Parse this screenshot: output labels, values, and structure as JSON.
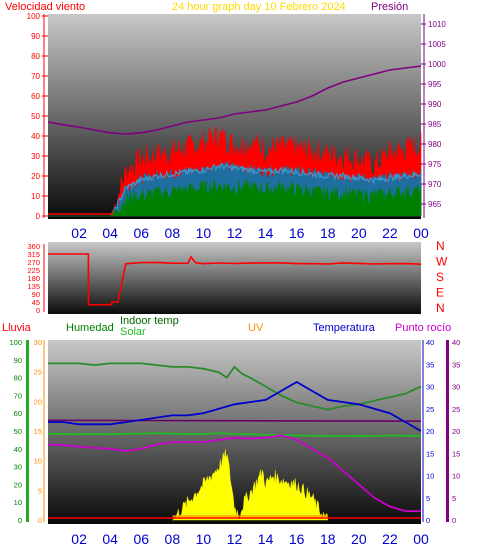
{
  "header": {
    "left_label": "Velocidad viento",
    "center_title": "24 hour graph day   10 Febrero 2024",
    "right_label": "Presión"
  },
  "panel3_labels": {
    "lluvia": "Lluvia",
    "humedad": "Humedad",
    "indoor_temp": "Indoor temp",
    "solar": "Solar",
    "uv": "UV",
    "temperatura": "Temperatura",
    "punto_rocio": "Punto rocío"
  },
  "colors": {
    "wind_gust": "#ff0000",
    "wind_avg": "#1f7fbf",
    "wind_green": "#008000",
    "pressure": "#800080",
    "direction": "#ff0000",
    "humidity": "#2a8a2a",
    "indoor_temp": "#22bb22",
    "solar": "#ffff00",
    "uv": "#ff8c00",
    "temperature": "#0000cc",
    "dewpoint": "#cc00cc",
    "rain": "#00aa00",
    "tick_x": "#0000cc",
    "title": "#ffd800"
  },
  "chart_data": [
    {
      "type": "line",
      "title": "24 hour graph day   10 Febrero 2024",
      "x_ticks": [
        "02",
        "04",
        "06",
        "08",
        "10",
        "12",
        "14",
        "16",
        "18",
        "20",
        "22",
        "00"
      ],
      "y_left_label": "Velocidad viento",
      "y_left_ticks": [
        0,
        10,
        20,
        30,
        40,
        50,
        60,
        70,
        80,
        90,
        100
      ],
      "ylim_left": [
        0,
        100
      ],
      "y_right_label": "Presión",
      "y_right_ticks": [
        965,
        970,
        975,
        980,
        985,
        990,
        995,
        1000,
        1005,
        1010
      ],
      "ylim_right": [
        962,
        1012
      ],
      "series": [
        {
          "name": "gust",
          "x": [
            0,
            1,
            2,
            3,
            4,
            4.3,
            5,
            6,
            7,
            8,
            9,
            10,
            11,
            12,
            13,
            14,
            15,
            16,
            17,
            18,
            19,
            20,
            21,
            22,
            23,
            24
          ],
          "values": [
            0,
            0,
            0,
            0,
            0,
            5,
            22,
            28,
            30,
            32,
            34,
            36,
            40,
            35,
            36,
            33,
            34,
            33,
            32,
            30,
            30,
            28,
            25,
            31,
            33,
            35
          ]
        },
        {
          "name": "avg",
          "x": [
            0,
            4,
            4.3,
            5,
            6,
            7,
            8,
            9,
            10,
            11,
            12,
            13,
            14,
            15,
            16,
            17,
            18,
            19,
            20,
            21,
            22,
            23,
            24
          ],
          "values": [
            0,
            0,
            3,
            14,
            18,
            20,
            21,
            22,
            23,
            25,
            24,
            23,
            22,
            23,
            22,
            21,
            20,
            20,
            19,
            18,
            19,
            20,
            21
          ]
        },
        {
          "name": "low",
          "x": [
            0,
            4,
            4.3,
            5,
            6,
            7,
            8,
            9,
            10,
            11,
            12,
            13,
            14,
            15,
            16,
            17,
            18,
            19,
            20,
            21,
            22,
            23,
            24
          ],
          "values": [
            0,
            0,
            2,
            8,
            10,
            11,
            12,
            13,
            14,
            15,
            14,
            14,
            13,
            14,
            13,
            12,
            11,
            11,
            10,
            10,
            11,
            12,
            12
          ]
        },
        {
          "name": "Presión",
          "x": [
            0,
            1,
            2,
            3,
            4,
            5,
            6,
            7,
            8,
            9,
            10,
            11,
            12,
            13,
            14,
            15,
            16,
            17,
            18,
            19,
            20,
            21,
            22,
            23,
            24
          ],
          "values": [
            985.5,
            984.8,
            984.2,
            983.5,
            982.8,
            982.5,
            982.8,
            983.5,
            984.5,
            985.5,
            986,
            986.5,
            987.5,
            988,
            988.5,
            989.5,
            990.5,
            992,
            994,
            995.5,
            996.5,
            997.5,
            998.5,
            999,
            999.5
          ]
        }
      ]
    },
    {
      "type": "line",
      "x_ticks": [
        "02",
        "04",
        "06",
        "08",
        "10",
        "12",
        "14",
        "16",
        "18",
        "20",
        "22",
        "00"
      ],
      "y_ticks": [
        0,
        45,
        90,
        135,
        180,
        225,
        270,
        315,
        360
      ],
      "ylim": [
        0,
        360
      ],
      "compass_labels": [
        "N",
        "W",
        "S",
        "E",
        "N"
      ],
      "series": [
        {
          "name": "direction",
          "x": [
            0,
            2.6,
            2.6,
            4.1,
            4.1,
            4.5,
            5,
            6,
            7,
            8,
            9,
            9.2,
            9.5,
            10,
            11,
            12,
            13,
            14,
            15,
            16,
            17,
            18,
            19,
            20,
            21,
            22,
            23,
            24
          ],
          "values": [
            315,
            315,
            30,
            30,
            45,
            45,
            260,
            265,
            268,
            262,
            265,
            295,
            270,
            262,
            265,
            262,
            265,
            262,
            260,
            258,
            262,
            262,
            260,
            262,
            260,
            262,
            260,
            262
          ]
        }
      ]
    },
    {
      "type": "line",
      "x_ticks": [
        "02",
        "04",
        "06",
        "08",
        "10",
        "12",
        "14",
        "16",
        "18",
        "20",
        "22",
        "00"
      ],
      "y_humidity_ticks": [
        0,
        10,
        20,
        30,
        40,
        50,
        60,
        70,
        80,
        90,
        100
      ],
      "y_rain_ticks": [
        0,
        5,
        10,
        15,
        20,
        25,
        30
      ],
      "y_temp_ticks": [
        0,
        5,
        10,
        15,
        20,
        25,
        30,
        35,
        40
      ],
      "ylim_humidity": [
        0,
        100
      ],
      "series": [
        {
          "name": "Humedad",
          "x": [
            0,
            2,
            3,
            4,
            5,
            6,
            7,
            8,
            9,
            10,
            11,
            11.5,
            12,
            12.5,
            13,
            14,
            15,
            16,
            17,
            18,
            19,
            20,
            21,
            22,
            23,
            24
          ],
          "values": [
            88,
            88,
            87,
            88,
            88,
            88,
            87,
            86,
            86,
            85,
            83,
            80,
            86,
            82,
            80,
            75,
            70,
            66,
            64,
            62,
            64,
            65,
            67,
            69,
            71,
            75
          ]
        },
        {
          "name": "Indoor temp",
          "x": [
            0,
            1,
            2,
            3,
            4,
            5,
            6,
            7,
            8,
            9,
            10,
            11,
            12,
            13,
            14,
            15,
            16,
            17,
            18,
            19,
            20,
            21,
            22,
            23,
            24
          ],
          "values": [
            48.5,
            48.3,
            48.2,
            48.3,
            48.2,
            48.5,
            48.5,
            48.8,
            48.5,
            48.3,
            48.3,
            48.8,
            48.3,
            48.2,
            47.8,
            47.7,
            47.5,
            47.3,
            47.3,
            47.2,
            47.3,
            47.2,
            47.5,
            47.3,
            47.3
          ]
        },
        {
          "name": "Temperatura",
          "x": [
            0,
            1,
            2,
            3,
            4,
            5,
            6,
            7,
            8,
            9,
            10,
            11,
            12,
            13,
            14,
            15,
            16,
            17,
            18,
            19,
            20,
            21,
            22,
            23,
            24
          ],
          "values": [
            22,
            22,
            21.5,
            21.5,
            21.5,
            22,
            22.5,
            23,
            23.5,
            23.5,
            24,
            25,
            26,
            26.5,
            27,
            29,
            31,
            29,
            27,
            26.5,
            26,
            25,
            24,
            22,
            20
          ]
        },
        {
          "name": "Punto rocío",
          "x": [
            0,
            1,
            2,
            3,
            4,
            5,
            6,
            7,
            8,
            9,
            10,
            11,
            12,
            13,
            14,
            15,
            16,
            17,
            18,
            19,
            20,
            21,
            22,
            23,
            24
          ],
          "values": [
            17,
            16.8,
            16.5,
            16.2,
            16,
            15.5,
            16,
            17,
            17.5,
            17.5,
            17.5,
            18,
            18.5,
            18.3,
            18.5,
            19,
            18,
            16,
            14,
            11,
            8,
            5,
            3,
            2,
            2
          ]
        },
        {
          "name": "Solar",
          "x": [
            0,
            8,
            8.5,
            9,
            9.5,
            10,
            10.5,
            11,
            11.5,
            11.8,
            12,
            12.3,
            12.6,
            13,
            13.5,
            13.8,
            14,
            14.5,
            15,
            16,
            17,
            17.5,
            18,
            24
          ],
          "values": [
            0,
            0,
            2,
            4,
            6,
            8,
            10,
            12,
            15,
            8,
            3,
            1,
            4,
            6,
            9,
            11,
            8,
            10,
            9,
            8,
            5,
            2,
            0,
            0
          ]
        },
        {
          "name": "Lluvia",
          "x": [
            0,
            24
          ],
          "values": [
            1,
            1
          ]
        }
      ]
    }
  ]
}
